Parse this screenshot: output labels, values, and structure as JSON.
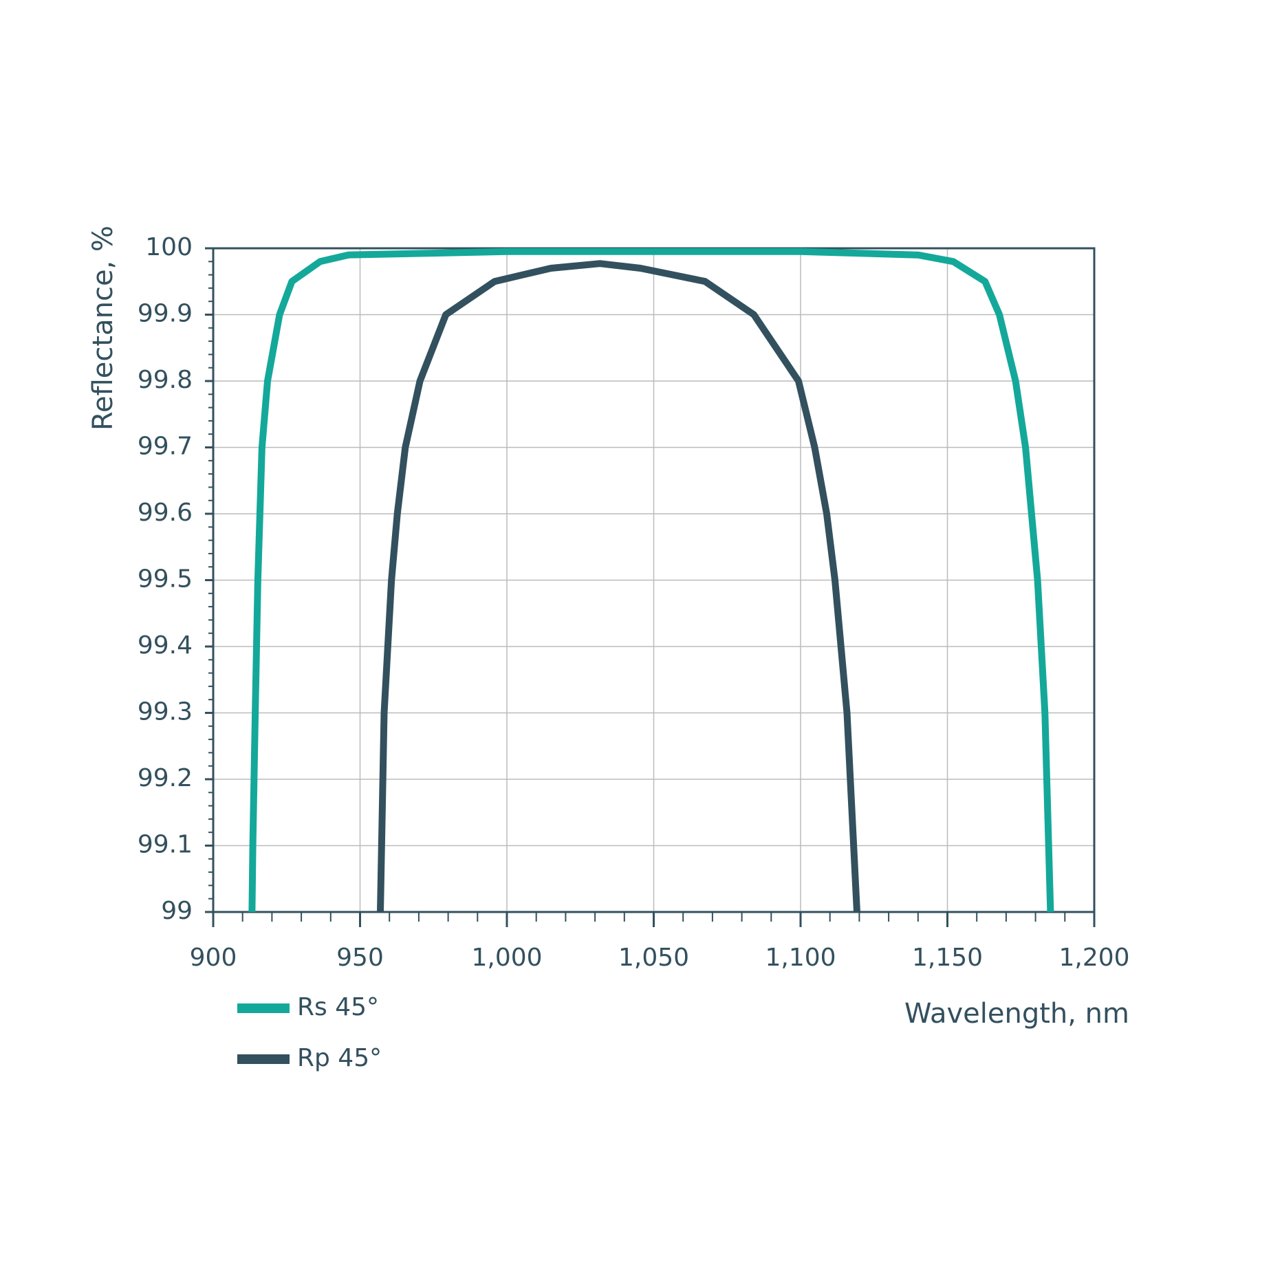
{
  "chart_data": {
    "type": "line",
    "x_label": "Wavelength, nm",
    "y_label": "Reflectance, %",
    "xlim": [
      900,
      1200
    ],
    "xticks": [
      900,
      950,
      {
        "value": 1000,
        "label": "1,000"
      },
      {
        "value": 1050,
        "label": "1,050"
      },
      {
        "value": 1100,
        "label": "1,100"
      },
      {
        "value": 1150,
        "label": "1,150"
      },
      {
        "value": 1200,
        "label": "1,200"
      }
    ],
    "ylim": [
      99,
      100
    ],
    "yticks": [
      99,
      99.1,
      99.2,
      99.3,
      99.4,
      99.5,
      99.6,
      99.7,
      99.8,
      99.9,
      100
    ],
    "grid": true,
    "legend": "bottom-left",
    "series": [
      {
        "name": "Rs 45°",
        "color": "#14a89a",
        "x": [
          913.2,
          913.5,
          914.3,
          915.2,
          916.6,
          918.5,
          922.6,
          926.8,
          936.4,
          946,
          1000,
          1100,
          1140,
          1152,
          1162.8,
          1167.7,
          1173.2,
          1176.6,
          1180.7,
          1183.2,
          1185.1
        ],
        "values": [
          99.0,
          99.1,
          99.3,
          99.5,
          99.7,
          99.8,
          99.9,
          99.95,
          99.98,
          99.99,
          99.995,
          99.995,
          99.99,
          99.98,
          99.95,
          99.9,
          99.8,
          99.7,
          99.5,
          99.3,
          99.0
        ]
      },
      {
        "name": "Rp 45°",
        "color": "#33505e",
        "x": [
          956.9,
          958.2,
          960.7,
          962.7,
          965.4,
          970.4,
          979.2,
          995.8,
          1015,
          1031.7,
          1045.5,
          1067.5,
          1084.1,
          1099.3,
          1104.8,
          1108.9,
          1111.7,
          1115.8,
          1119.2
        ],
        "values": [
          99.0,
          99.3,
          99.5,
          99.6,
          99.7,
          99.8,
          99.9,
          99.95,
          99.97,
          99.977,
          99.97,
          99.95,
          99.9,
          99.8,
          99.7,
          99.6,
          99.5,
          99.3,
          99.0
        ]
      }
    ]
  }
}
